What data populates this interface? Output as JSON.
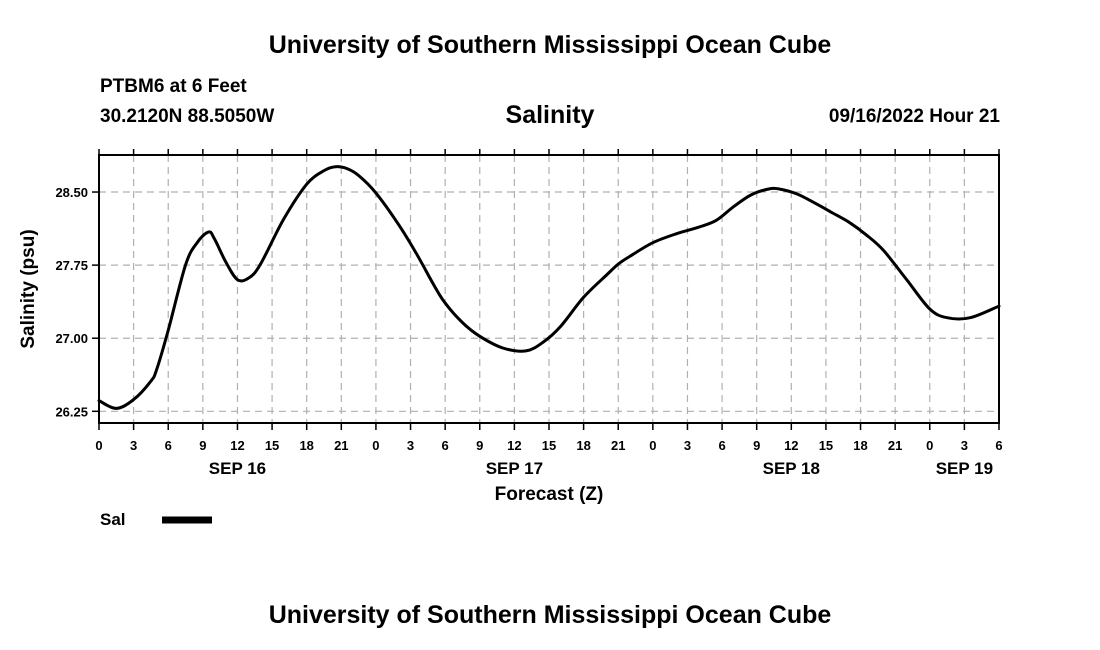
{
  "header": {
    "title": "University of Southern Mississippi Ocean Cube",
    "station": "PTBM6 at 6 Feet",
    "coords": "30.2120N  88.5050W",
    "chart_title": "Salinity",
    "timestamp": "09/16/2022 Hour 21"
  },
  "footer": {
    "title": "University of Southern Mississippi Ocean Cube"
  },
  "legend": {
    "label": "Sal",
    "color": "#000000"
  },
  "chart_data": {
    "type": "line",
    "title": "Salinity",
    "xlabel": "Forecast (Z)",
    "ylabel": "Salinity (psu)",
    "x_unit": "hours from 2022-09-16 00Z",
    "x_range": [
      0,
      78
    ],
    "ylim": [
      26.13,
      28.88
    ],
    "x_tick_labels": [
      "0",
      "3",
      "6",
      "9",
      "12",
      "15",
      "18",
      "21",
      "0",
      "3",
      "6",
      "9",
      "12",
      "15",
      "18",
      "21",
      "0",
      "3",
      "6",
      "9",
      "12",
      "15",
      "18",
      "21",
      "0",
      "3",
      "6"
    ],
    "y_ticks": [
      26.25,
      27.0,
      27.75,
      28.5
    ],
    "y_tick_labels": [
      "26.25",
      "27.00",
      "27.75",
      "28.50"
    ],
    "date_labels": [
      {
        "label": "SEP 16",
        "x": 12
      },
      {
        "label": "SEP 17",
        "x": 36
      },
      {
        "label": "SEP 18",
        "x": 60
      },
      {
        "label": "SEP 19",
        "x": 75
      }
    ],
    "grid": true,
    "legend_position": "bottom-left",
    "series": [
      {
        "name": "Sal",
        "color": "#000000",
        "x": [
          0,
          1.5,
          3,
          4.5,
          5,
          6,
          7.5,
          8.5,
          9.5,
          10,
          11,
          12,
          13,
          14,
          16,
          18,
          19.5,
          20.5,
          21.5,
          22.5,
          24,
          26,
          27.5,
          29,
          30,
          31.5,
          33,
          35,
          37,
          38.5,
          40,
          42,
          44,
          45,
          46,
          48,
          50,
          52,
          53.5,
          55,
          56.5,
          58,
          59,
          60.5,
          62,
          63.5,
          65,
          66.5,
          68,
          70,
          72,
          73.5,
          75.5,
          78
        ],
        "values": [
          26.36,
          26.28,
          26.37,
          26.56,
          26.68,
          27.08,
          27.75,
          27.98,
          28.09,
          28.02,
          27.78,
          27.6,
          27.62,
          27.76,
          28.22,
          28.58,
          28.72,
          28.76,
          28.74,
          28.67,
          28.49,
          28.16,
          27.87,
          27.55,
          27.36,
          27.16,
          27.02,
          26.9,
          26.87,
          26.96,
          27.12,
          27.42,
          27.65,
          27.76,
          27.84,
          27.98,
          28.07,
          28.14,
          28.21,
          28.35,
          28.47,
          28.53,
          28.53,
          28.48,
          28.39,
          28.29,
          28.19,
          28.06,
          27.9,
          27.6,
          27.3,
          27.21,
          27.21,
          27.33
        ]
      }
    ]
  }
}
